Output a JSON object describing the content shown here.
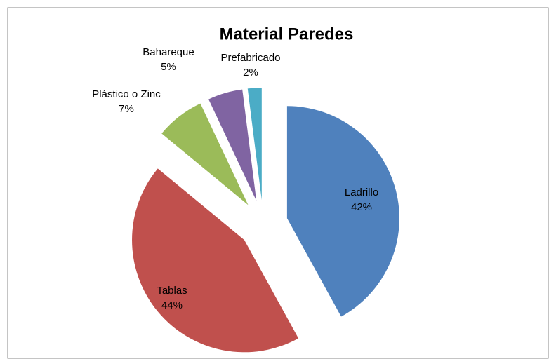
{
  "chart_data": {
    "type": "pie",
    "title": "Material Paredes",
    "categories": [
      "Ladrillo",
      "Tablas",
      "Plástico o Zinc",
      "Bahareque",
      "Prefabricado"
    ],
    "values": [
      42,
      44,
      7,
      5,
      2
    ],
    "value_labels": [
      "42%",
      "44%",
      "7%",
      "5%",
      "2%"
    ],
    "colors": [
      "#4f81bd",
      "#c0504d",
      "#9bbb59",
      "#8064a2",
      "#4bacc6"
    ]
  }
}
